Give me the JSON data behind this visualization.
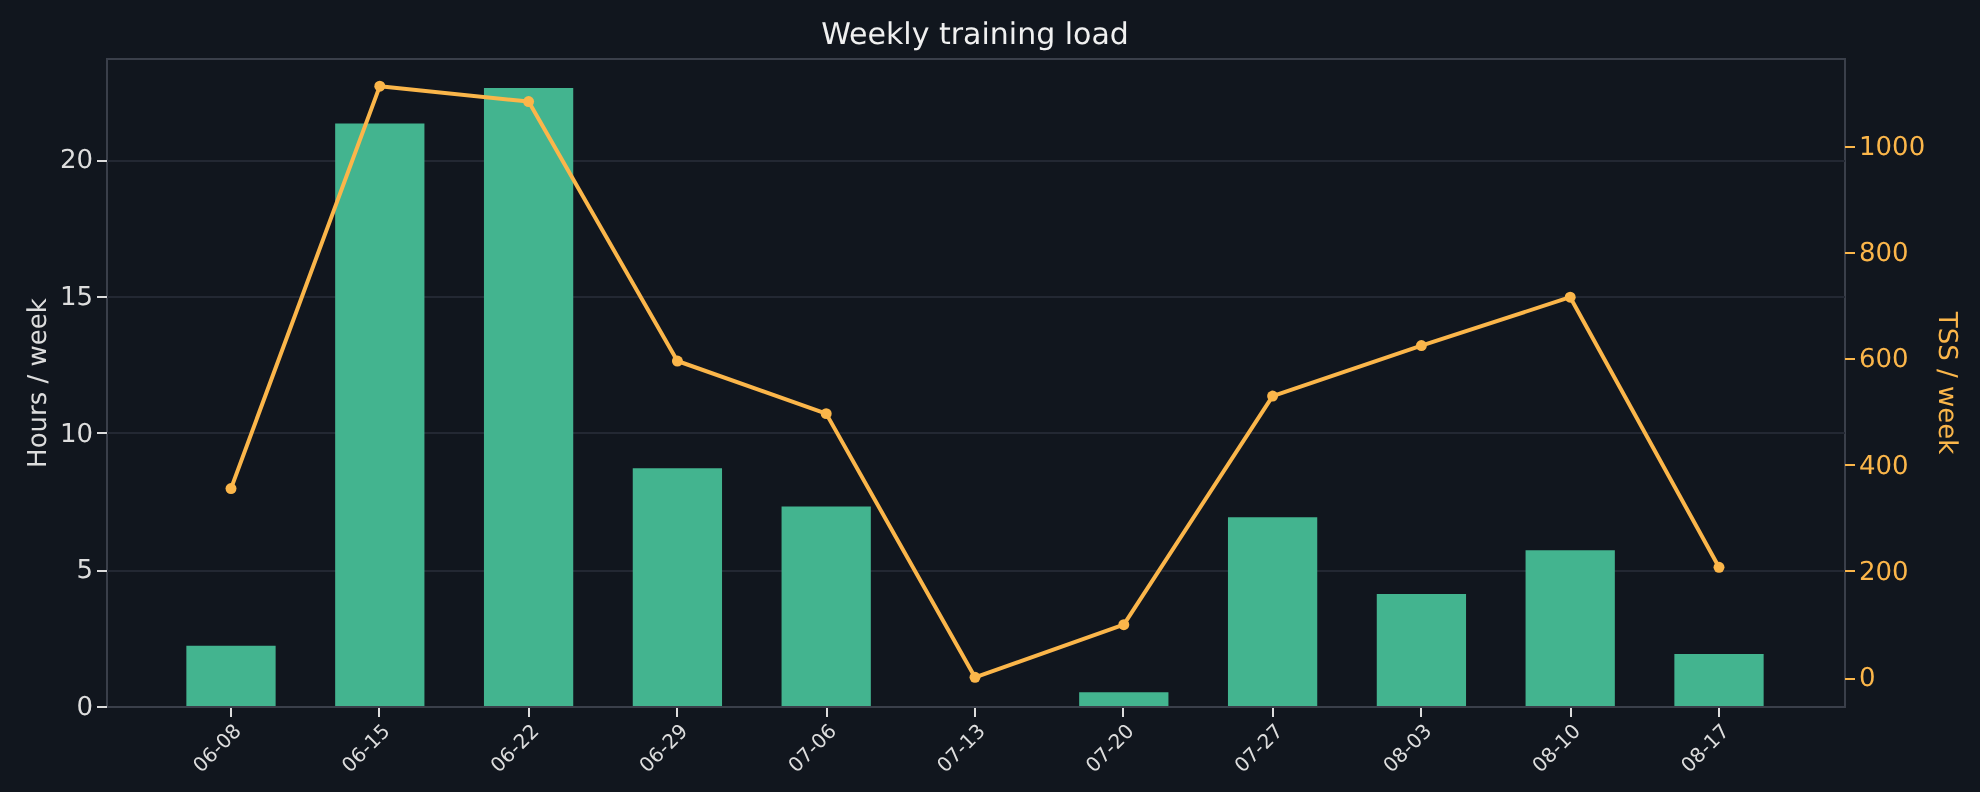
{
  "chart_data": {
    "type": "bar",
    "title": "Weekly training load",
    "ylabel": "Hours / week",
    "y2label": "TSS / week",
    "categories": [
      "06-08",
      "06-15",
      "06-22",
      "06-29",
      "07-06",
      "07-13",
      "07-20",
      "07-27",
      "08-03",
      "08-10",
      "08-17"
    ],
    "series": [
      {
        "color": "#43b48f",
        "values": [
          2.2,
          21.3,
          22.6,
          8.7,
          7.3,
          0,
          0.5,
          6.9,
          4.1,
          5.7,
          1.9
        ]
      },
      {
        "type": "line",
        "axis": "y2",
        "color": "#fbb64a",
        "marker": "circle",
        "values": [
          355,
          1112,
          1083,
          595,
          496,
          0,
          99,
          529,
          624,
          715,
          207
        ]
      }
    ],
    "ylim": [
      0,
      23.7
    ],
    "yticks": [
      0,
      5,
      10,
      15,
      20
    ],
    "y2lim": [
      -54,
      1165
    ],
    "y2ticks": [
      0,
      200,
      400,
      600,
      800,
      1000
    ],
    "grid": "y"
  }
}
